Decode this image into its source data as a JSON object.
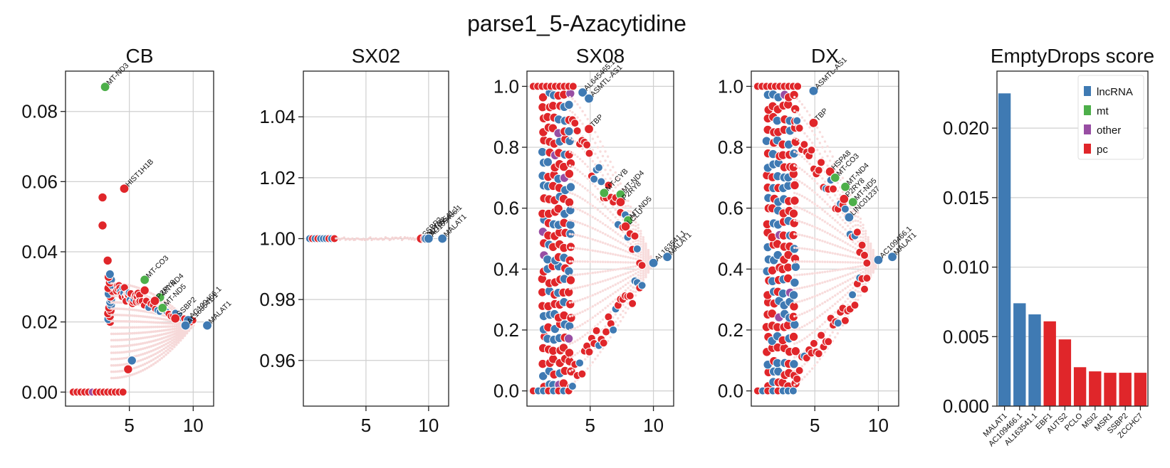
{
  "figure": {
    "suptitle": "parse1_5-Azacytidine"
  },
  "colors": {
    "lncRNA": "#3f7ab3",
    "mt": "#4daf4a",
    "other": "#984ea3",
    "pc": "#e0262a",
    "grid": "#cfcfcf",
    "axes": "#222222"
  },
  "chart_data": [
    {
      "type": "scatter",
      "title": "CB",
      "xlabel": "",
      "ylabel": "",
      "xlim": [
        0,
        11.6
      ],
      "ylim": [
        -0.004,
        0.0915
      ],
      "xticks": [
        5,
        10
      ],
      "xtick_labels": [
        "5",
        "10"
      ],
      "yticks": [
        0,
        0.02,
        0.04,
        0.06,
        0.08
      ],
      "ytick_labels": [
        "0.00",
        "0.02",
        "0.04",
        "0.06",
        "0.08"
      ],
      "grid": true,
      "labeled_points": [
        {
          "gene": "MT-ND3",
          "x": 3.1,
          "y": 0.087,
          "type": "mt"
        },
        {
          "gene": "HIST1H1B",
          "x": 4.6,
          "y": 0.058,
          "type": "pc"
        },
        {
          "gene": "MT-CO3",
          "x": 6.2,
          "y": 0.032,
          "type": "mt"
        },
        {
          "gene": "MT-ND4",
          "x": 7.4,
          "y": 0.027,
          "type": "mt"
        },
        {
          "gene": "P2RY8",
          "x": 7.0,
          "y": 0.026,
          "type": "pc"
        },
        {
          "gene": "MT-ND5",
          "x": 7.6,
          "y": 0.024,
          "type": "mt"
        },
        {
          "gene": "SSBP2",
          "x": 8.6,
          "y": 0.021,
          "type": "pc"
        },
        {
          "gene": "AC109466.1",
          "x": 9.6,
          "y": 0.0205,
          "type": "lncRNA"
        },
        {
          "gene": "AL163541.1",
          "x": 9.4,
          "y": 0.019,
          "type": "lncRNA"
        },
        {
          "gene": "MALAT1",
          "x": 11.1,
          "y": 0.019,
          "type": "lncRNA"
        }
      ]
    },
    {
      "type": "scatter",
      "title": "SX02",
      "xlabel": "",
      "ylabel": "",
      "xlim": [
        0,
        11.6
      ],
      "ylim": [
        0.945,
        1.055
      ],
      "xticks": [
        5,
        10
      ],
      "xtick_labels": [
        "5",
        "10"
      ],
      "yticks": [
        0.96,
        0.98,
        1.0,
        1.02,
        1.04
      ],
      "ytick_labels": [
        "0.96",
        "0.98",
        "1.00",
        "1.02",
        "1.04"
      ],
      "grid": true,
      "labeled_points": [
        {
          "gene": "SSBP2",
          "x": 9.4,
          "y": 1.0,
          "type": "pc"
        },
        {
          "gene": "AUTS2",
          "x": 9.7,
          "y": 1.0,
          "type": "pc"
        },
        {
          "gene": "AL163541.1",
          "x": 9.8,
          "y": 1.0,
          "type": "lncRNA"
        },
        {
          "gene": "AC109466.1",
          "x": 10.0,
          "y": 1.0,
          "type": "lncRNA"
        },
        {
          "gene": "MALAT1",
          "x": 11.1,
          "y": 1.0,
          "type": "lncRNA"
        }
      ]
    },
    {
      "type": "scatter",
      "title": "SX08",
      "xlabel": "",
      "ylabel": "",
      "xlim": [
        0,
        11.6
      ],
      "ylim": [
        -0.05,
        1.05
      ],
      "xticks": [
        5,
        10
      ],
      "xtick_labels": [
        "5",
        "10"
      ],
      "yticks": [
        0,
        0.2,
        0.4,
        0.6,
        0.8,
        1.0
      ],
      "ytick_labels": [
        "0.0",
        "0.2",
        "0.4",
        "0.6",
        "0.8",
        "1.0"
      ],
      "grid": true,
      "labeled_points": [
        {
          "gene": "AL645465.1",
          "x": 4.4,
          "y": 0.98,
          "type": "lncRNA"
        },
        {
          "gene": "ASMTL-AS1",
          "x": 4.9,
          "y": 0.96,
          "type": "lncRNA"
        },
        {
          "gene": "TBP",
          "x": 4.9,
          "y": 0.86,
          "type": "pc"
        },
        {
          "gene": "MT-CYB",
          "x": 6.1,
          "y": 0.65,
          "type": "mt"
        },
        {
          "gene": "MT-ND4",
          "x": 7.4,
          "y": 0.645,
          "type": "mt"
        },
        {
          "gene": "P2RY8",
          "x": 7.4,
          "y": 0.62,
          "type": "pc"
        },
        {
          "gene": "MT-ND5",
          "x": 8.0,
          "y": 0.56,
          "type": "mt"
        },
        {
          "gene": "LCLU",
          "x": 7.8,
          "y": 0.54,
          "type": "pc"
        },
        {
          "gene": "AL163541.1",
          "x": 10.0,
          "y": 0.42,
          "type": "lncRNA"
        },
        {
          "gene": "MALAT1",
          "x": 11.1,
          "y": 0.44,
          "type": "lncRNA"
        }
      ]
    },
    {
      "type": "scatter",
      "title": "DX",
      "xlabel": "",
      "ylabel": "",
      "xlim": [
        0,
        11.6
      ],
      "ylim": [
        -0.05,
        1.05
      ],
      "xticks": [
        5,
        10
      ],
      "xtick_labels": [
        "5",
        "10"
      ],
      "yticks": [
        0,
        0.2,
        0.4,
        0.6,
        0.8,
        1.0
      ],
      "ytick_labels": [
        "0.0",
        "0.2",
        "0.4",
        "0.6",
        "0.8",
        "1.0"
      ],
      "grid": true,
      "labeled_points": [
        {
          "gene": "ASMTL-AS1",
          "x": 4.9,
          "y": 0.985,
          "type": "lncRNA"
        },
        {
          "gene": "TBP",
          "x": 4.9,
          "y": 0.88,
          "type": "pc"
        },
        {
          "gene": "HSPA8",
          "x": 6.2,
          "y": 0.72,
          "type": "pc"
        },
        {
          "gene": "MT-CO3",
          "x": 6.6,
          "y": 0.7,
          "type": "mt"
        },
        {
          "gene": "MT-ND4",
          "x": 7.4,
          "y": 0.67,
          "type": "mt"
        },
        {
          "gene": "P2RY8",
          "x": 7.3,
          "y": 0.63,
          "type": "pc"
        },
        {
          "gene": "MT-ND5",
          "x": 8.0,
          "y": 0.62,
          "type": "mt"
        },
        {
          "gene": "LINC01237",
          "x": 7.7,
          "y": 0.57,
          "type": "lncRNA"
        },
        {
          "gene": "AC109466.1",
          "x": 10.0,
          "y": 0.43,
          "type": "lncRNA"
        },
        {
          "gene": "MALAT1",
          "x": 11.1,
          "y": 0.44,
          "type": "lncRNA"
        }
      ]
    },
    {
      "type": "bar",
      "title": "EmptyDrops score",
      "xlabel": "",
      "ylabel": "",
      "ylim": [
        0,
        0.0241
      ],
      "yticks": [
        0,
        0.005,
        0.01,
        0.015,
        0.02
      ],
      "ytick_labels": [
        "0.000",
        "0.005",
        "0.010",
        "0.015",
        "0.020"
      ],
      "grid": true,
      "categories": [
        "MALAT1",
        "AC109466.1",
        "AL163541.1",
        "EBF1",
        "AUTS2",
        "PCLO",
        "MSI2",
        "MSR1",
        "SSBP2",
        "ZCCHC7"
      ],
      "values": [
        0.0225,
        0.0074,
        0.0066,
        0.0061,
        0.0048,
        0.0028,
        0.0025,
        0.0024,
        0.0024,
        0.0024
      ],
      "bar_types": [
        "lncRNA",
        "lncRNA",
        "lncRNA",
        "pc",
        "pc",
        "pc",
        "pc",
        "pc",
        "pc",
        "pc"
      ],
      "legend": {
        "placement": "top-right",
        "entries": [
          {
            "label": "lncRNA",
            "type": "lncRNA"
          },
          {
            "label": "mt",
            "type": "mt"
          },
          {
            "label": "other",
            "type": "other"
          },
          {
            "label": "pc",
            "type": "pc"
          }
        ]
      }
    }
  ]
}
